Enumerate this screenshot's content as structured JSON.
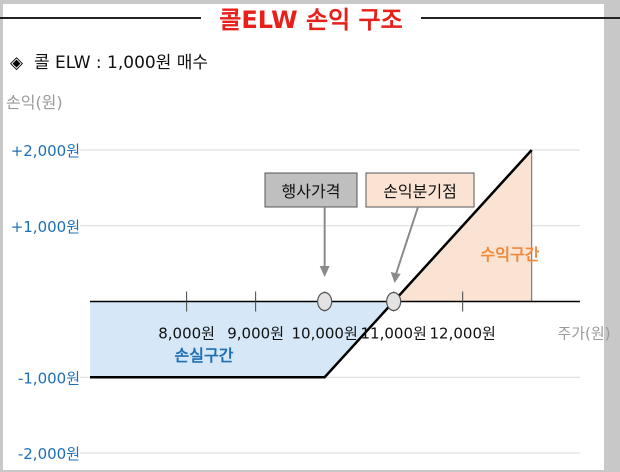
{
  "title": "콜ELW 손익 구조",
  "subtitle_marker": "◈",
  "subtitle": "콜 ELW : 1,000원 매수",
  "colors": {
    "title": "#e8201a",
    "y_tick_text": "#1f6fb5",
    "loss_fill": "#d6e8f7",
    "loss_label": "#1f6fb5",
    "profit_fill": "#fbe3d3",
    "profit_label": "#ef8a3c",
    "callout_gray": "#bfbfbf",
    "callout_peach": "#fbe3d3"
  },
  "chart_data": {
    "type": "line",
    "title": "콜ELW 손익 구조",
    "ylabel": "손익(원)",
    "xlabel": "주가(원)",
    "x_ticks": [
      {
        "value": 8000,
        "label": "8,000원"
      },
      {
        "value": 9000,
        "label": "9,000원"
      },
      {
        "value": 10000,
        "label": "10,000원"
      },
      {
        "value": 11000,
        "label": "11,000원"
      },
      {
        "value": 12000,
        "label": "12,000원"
      }
    ],
    "y_ticks": [
      {
        "value": 2000,
        "label": "+2,000원"
      },
      {
        "value": 1000,
        "label": "+1,000원"
      },
      {
        "value": -1000,
        "label": "-1,000원"
      },
      {
        "value": -2000,
        "label": "-2,000원"
      }
    ],
    "xlim": [
      6600,
      13700
    ],
    "ylim": [
      -2000,
      2000
    ],
    "grid": true,
    "series": [
      {
        "x": [
          6600,
          10000,
          13000
        ],
        "y": [
          -1000,
          -1000,
          2000
        ]
      }
    ],
    "regions": [
      {
        "label": "손실구간",
        "x_from": 6600,
        "x_to": 11000
      },
      {
        "label": "수익구간",
        "x_from": 11000,
        "x_to": 13000
      }
    ],
    "annotations": [
      {
        "label": "행사가격",
        "x": 10000,
        "y": 0
      },
      {
        "label": "손익분기점",
        "x": 11000,
        "y": 0
      }
    ]
  }
}
